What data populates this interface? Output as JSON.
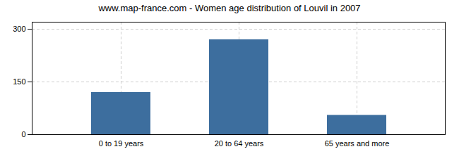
{
  "chart_data": {
    "type": "bar",
    "title": "www.map-france.com - Women age distribution of Louvil in 2007",
    "categories": [
      "0 to 19 years",
      "20 to 64 years",
      "65 years and more"
    ],
    "values": [
      120,
      270,
      55
    ],
    "color": "#3d6e9e",
    "ylim": [
      0,
      320
    ],
    "yticks": [
      0,
      150,
      300
    ],
    "grid": true
  }
}
